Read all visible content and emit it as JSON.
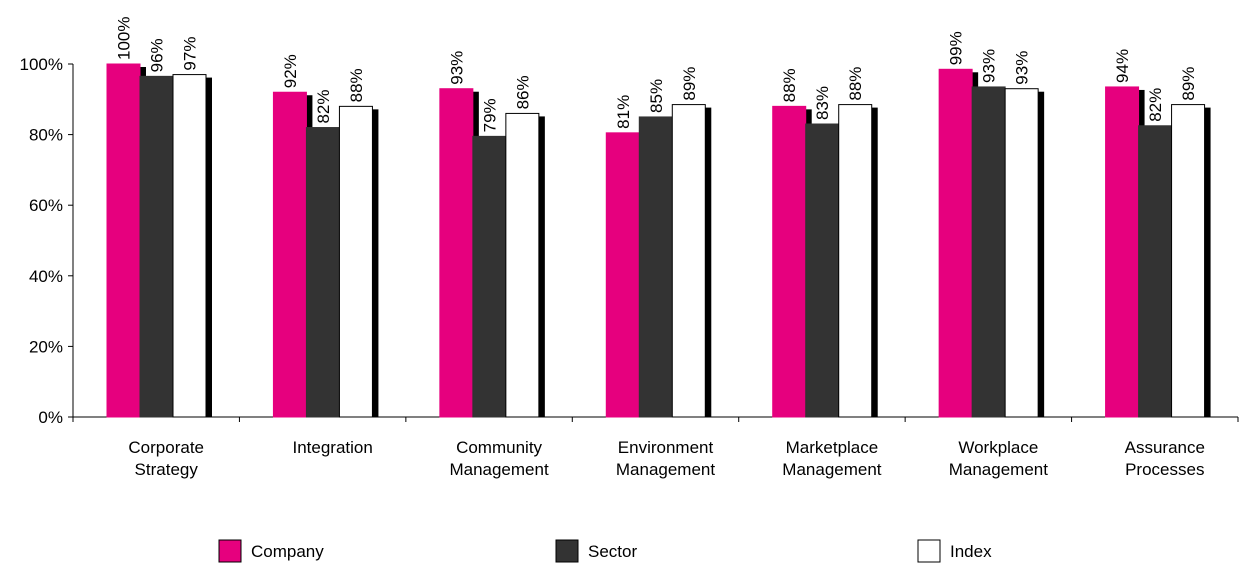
{
  "chart_data": {
    "type": "bar",
    "categories": [
      [
        "Corporate",
        "Strategy"
      ],
      [
        "Integration"
      ],
      [
        "Community",
        "Management"
      ],
      [
        "Environment",
        "Management"
      ],
      [
        "Marketplace",
        "Management"
      ],
      [
        "Workplace",
        "Management"
      ],
      [
        "Assurance",
        "Processes"
      ]
    ],
    "series": [
      {
        "name": "Company",
        "color": "#e6007e",
        "values": [
          100,
          92,
          93,
          80.5,
          88,
          98.5,
          93.5
        ],
        "labels": [
          "100%",
          "92%",
          "93%",
          "81%",
          "88%",
          "99%",
          "94%"
        ]
      },
      {
        "name": "Sector",
        "color": "#333333",
        "values": [
          96.5,
          82,
          79.5,
          85,
          83,
          93.5,
          82.5
        ],
        "labels": [
          "96%",
          "82%",
          "79%",
          "85%",
          "83%",
          "93%",
          "82%"
        ]
      },
      {
        "name": "Index",
        "color": "#ffffff",
        "values": [
          97,
          88,
          86,
          88.5,
          88.5,
          93,
          88.5
        ],
        "labels": [
          "97%",
          "88%",
          "86%",
          "89%",
          "88%",
          "93%",
          "89%"
        ]
      }
    ],
    "ylim": [
      0,
      100
    ],
    "yticks": [
      "0%",
      "20%",
      "40%",
      "60%",
      "80%",
      "100%"
    ],
    "legend_position": "bottom",
    "grid": false
  }
}
